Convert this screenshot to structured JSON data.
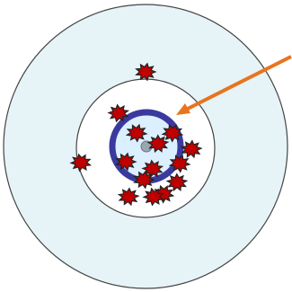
{
  "colors": {
    "outer_fill": "#e6f4f8",
    "inner_fill": "#ffffff",
    "ring_stroke": "#444444",
    "highlight_fill": "#dcefff",
    "highlight_stroke": "#3a3a9e",
    "pointer": "#e8741e",
    "center_dot": "#9aa7b0",
    "marker_fill": "#c00000",
    "marker_outline": "#222222"
  },
  "icons": {
    "marker": "spiky-blob",
    "pointer": "arrow"
  },
  "markers": {
    "count": 15
  }
}
